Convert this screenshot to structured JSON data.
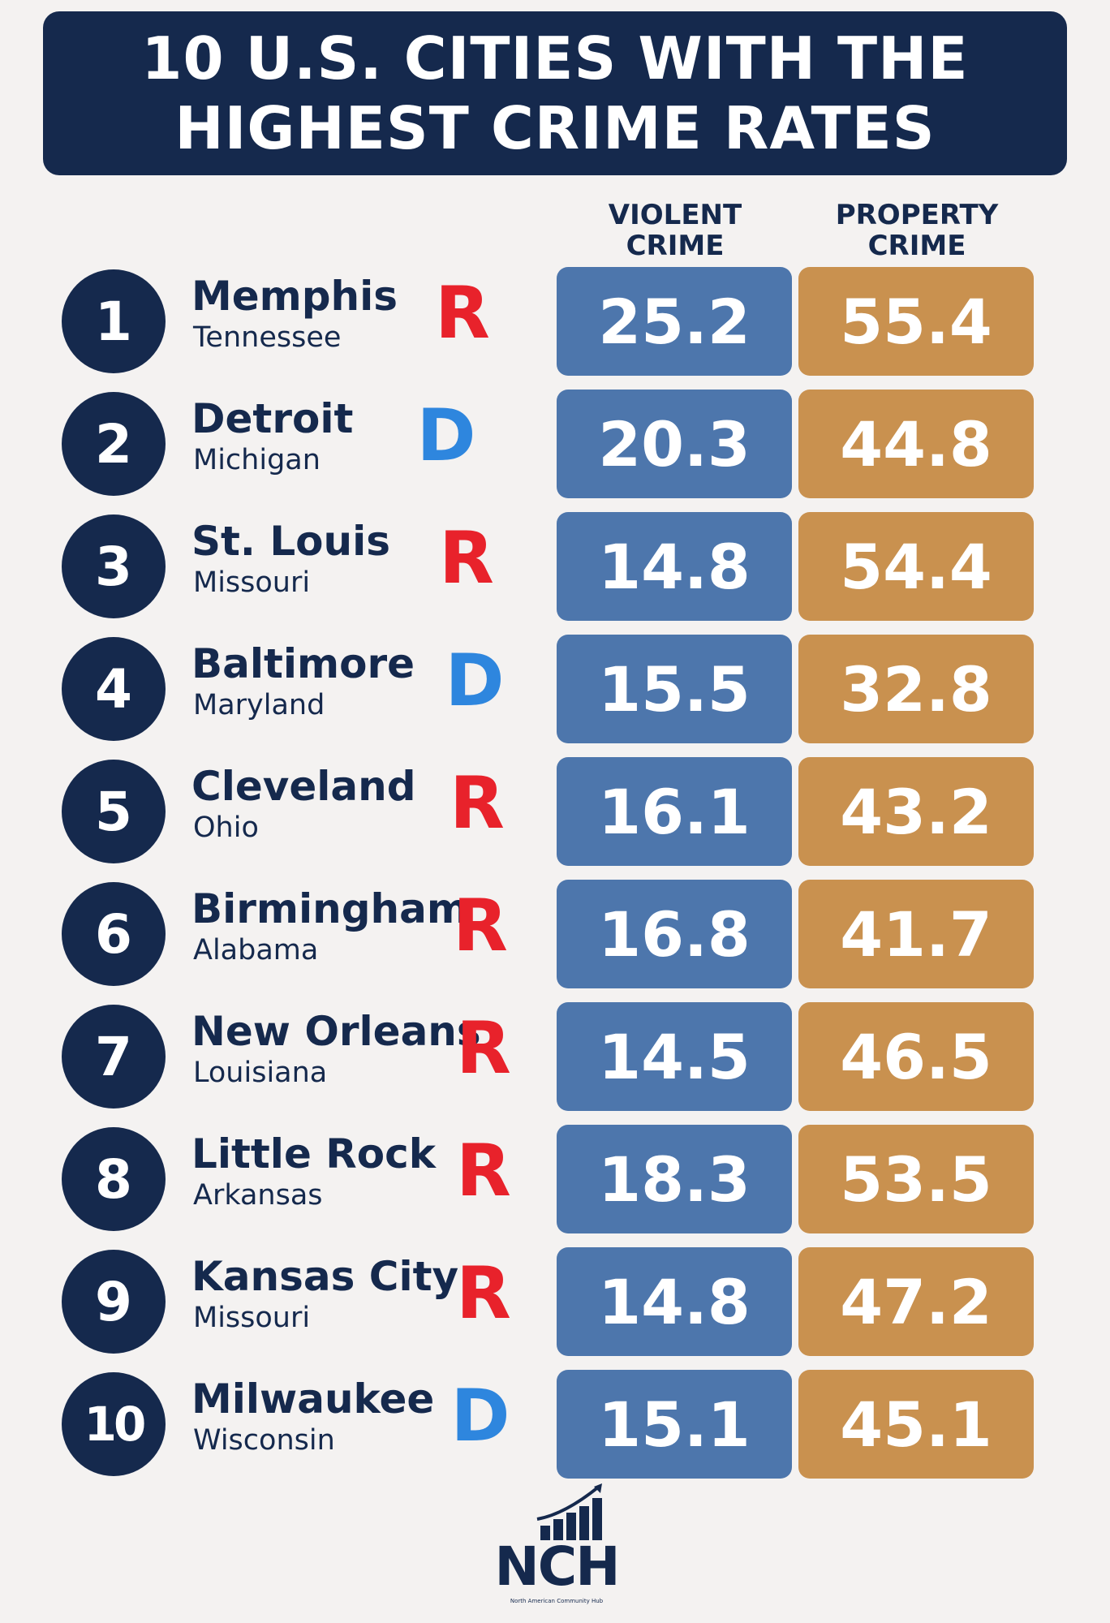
{
  "title": {
    "line1": "10 U.S. CITIES WITH THE",
    "line2": "HIGHEST CRIME RATES"
  },
  "headers": {
    "violent_line1": "VIOLENT",
    "violent_line2": "CRIME",
    "property_line1": "PROPERTY",
    "property_line2": "CRIME"
  },
  "colors": {
    "title_bg": "#15294d",
    "violent": "#4d76ac",
    "property": "#c9914f",
    "republican": "#e8222b",
    "democrat": "#2e86de"
  },
  "chart_data": {
    "type": "table",
    "title": "10 U.S. CITIES WITH THE HIGHEST CRIME RATES",
    "columns": [
      "VIOLENT CRIME",
      "PROPERTY CRIME"
    ],
    "rows": [
      {
        "rank": "1",
        "city": "Memphis",
        "state": "Tennessee",
        "party": "R",
        "violent": "25.2",
        "property": "55.4"
      },
      {
        "rank": "2",
        "city": "Detroit",
        "state": "Michigan",
        "party": "D",
        "violent": "20.3",
        "property": "44.8"
      },
      {
        "rank": "3",
        "city": "St. Louis",
        "state": "Missouri",
        "party": "R",
        "violent": "14.8",
        "property": "54.4"
      },
      {
        "rank": "4",
        "city": "Baltimore",
        "state": "Maryland",
        "party": "D",
        "violent": "15.5",
        "property": "32.8"
      },
      {
        "rank": "5",
        "city": "Cleveland",
        "state": "Ohio",
        "party": "R",
        "violent": "16.1",
        "property": "43.2"
      },
      {
        "rank": "6",
        "city": "Birmingham",
        "state": "Alabama",
        "party": "R",
        "violent": "16.8",
        "property": "41.7"
      },
      {
        "rank": "7",
        "city": "New Orleans",
        "state": "Louisiana",
        "party": "R",
        "violent": "14.5",
        "property": "46.5"
      },
      {
        "rank": "8",
        "city": "Little Rock",
        "state": "Arkansas",
        "party": "R",
        "violent": "18.3",
        "property": "53.5"
      },
      {
        "rank": "9",
        "city": "Kansas City",
        "state": "Missouri",
        "party": "R",
        "violent": "14.8",
        "property": "47.2"
      },
      {
        "rank": "10",
        "city": "Milwaukee",
        "state": "Wisconsin",
        "party": "D",
        "violent": "15.1",
        "property": "45.1"
      }
    ]
  },
  "logo": {
    "text": "NCH",
    "subtitle": "North American Community Hub"
  }
}
